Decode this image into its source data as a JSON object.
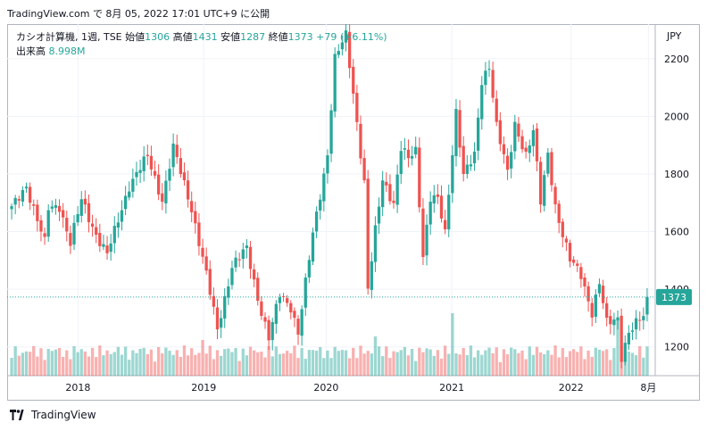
{
  "header": {
    "text": "TradingView.com で 8月 05, 2022 17:01 UTC+9 に公開"
  },
  "legend": {
    "symbol": "カシオ計算機, 1週, TSE",
    "open_label": "始値",
    "open_value": "1306",
    "high_label": "高値",
    "high_value": "1431",
    "low_label": "安値",
    "low_value": "1287",
    "close_label": "終値",
    "close_value": "1373",
    "change": "+79 (+6.11%)",
    "volume_label": "出来高",
    "volume_value": "8.998M"
  },
  "currency": "JPY",
  "footer": {
    "brand": "TradingView",
    "logo_icon": "tradingview-logo-icon"
  },
  "colors": {
    "up": "#26a69a",
    "down": "#ef5350",
    "grid": "#f0f3fa",
    "axis_text": "#131722"
  },
  "chart_data": {
    "type": "candlestick",
    "ylim": [
      1100,
      2320
    ],
    "y_ticks": [
      "1200",
      "1400",
      "1600",
      "1800",
      "2000",
      "2200"
    ],
    "x_ticks": [
      "2018",
      "2019",
      "2020",
      "2021",
      "2022",
      "8月"
    ],
    "grid": true,
    "last_price": "1373",
    "last_price_line": "dotted",
    "anchors": [
      [
        0,
        1680
      ],
      [
        4,
        1760
      ],
      [
        7,
        1640
      ],
      [
        9,
        1560
      ],
      [
        10,
        1680
      ],
      [
        13,
        1690
      ],
      [
        16,
        1560
      ],
      [
        19,
        1710
      ],
      [
        23,
        1590
      ],
      [
        26,
        1520
      ],
      [
        32,
        1760
      ],
      [
        37,
        1860
      ],
      [
        41,
        1710
      ],
      [
        44,
        1890
      ],
      [
        49,
        1680
      ],
      [
        53,
        1450
      ],
      [
        56,
        1260
      ],
      [
        60,
        1480
      ],
      [
        64,
        1540
      ],
      [
        67,
        1370
      ],
      [
        70,
        1230
      ],
      [
        73,
        1380
      ],
      [
        76,
        1340
      ],
      [
        78,
        1250
      ],
      [
        82,
        1590
      ],
      [
        86,
        1870
      ],
      [
        88,
        2200
      ],
      [
        91,
        2280
      ],
      [
        94,
        1980
      ],
      [
        96,
        1770
      ],
      [
        97,
        1400
      ],
      [
        99,
        1600
      ],
      [
        101,
        1780
      ],
      [
        104,
        1700
      ],
      [
        106,
        1890
      ],
      [
        108,
        1850
      ],
      [
        110,
        1880
      ],
      [
        112,
        1520
      ],
      [
        114,
        1720
      ],
      [
        116,
        1710
      ],
      [
        118,
        1590
      ],
      [
        121,
        2020
      ],
      [
        123,
        1800
      ],
      [
        126,
        1860
      ],
      [
        128,
        2120
      ],
      [
        130,
        2180
      ],
      [
        132,
        1970
      ],
      [
        135,
        1800
      ],
      [
        137,
        1970
      ],
      [
        140,
        1870
      ],
      [
        142,
        1950
      ],
      [
        144,
        1700
      ],
      [
        146,
        1870
      ],
      [
        148,
        1690
      ],
      [
        150,
        1590
      ],
      [
        152,
        1500
      ],
      [
        155,
        1450
      ],
      [
        158,
        1320
      ],
      [
        160,
        1420
      ],
      [
        162,
        1280
      ],
      [
        165,
        1300
      ],
      [
        166,
        1170
      ],
      [
        168,
        1250
      ],
      [
        172,
        1306
      ],
      [
        173,
        1373
      ]
    ]
  }
}
